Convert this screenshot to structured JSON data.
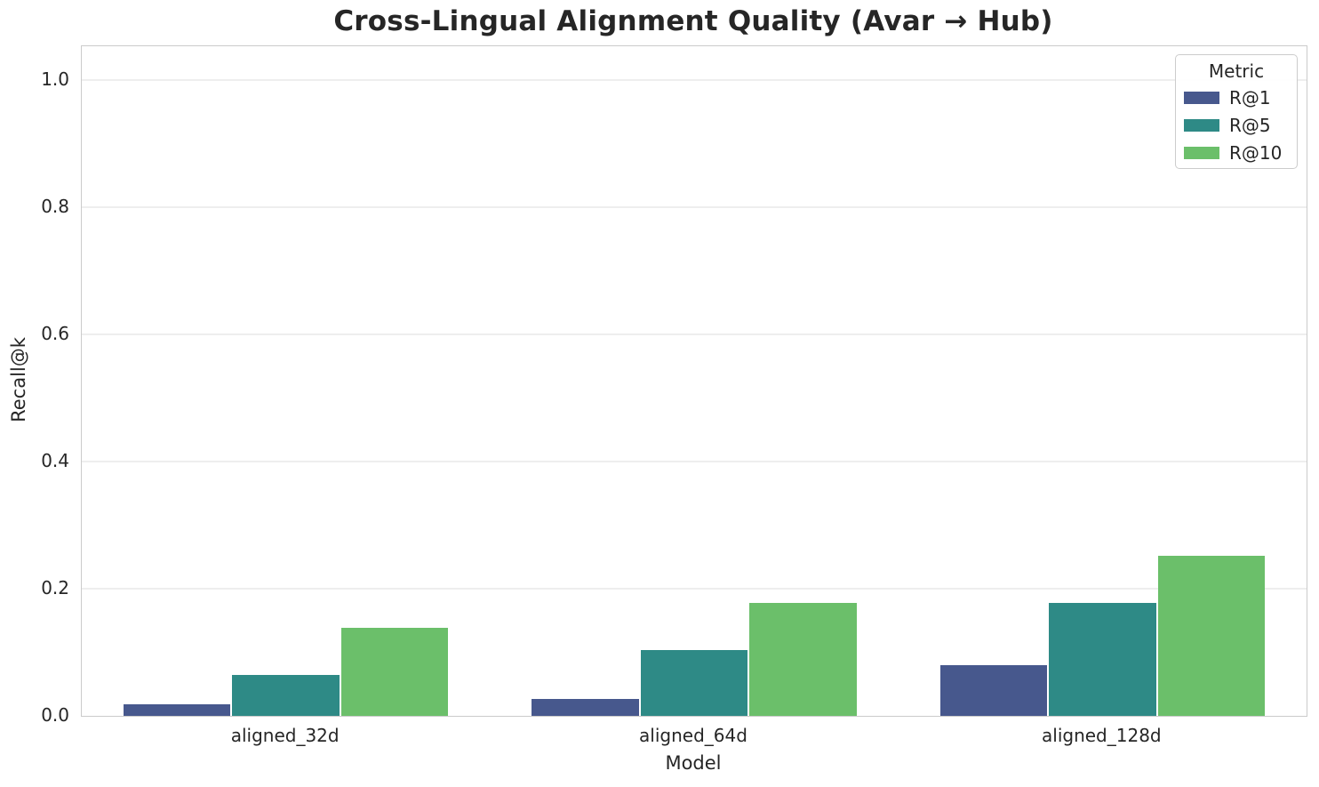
{
  "chart_data": {
    "type": "bar",
    "title": "Cross-Lingual Alignment Quality (Avar → Hub)",
    "xlabel": "Model",
    "ylabel": "Recall@k",
    "categories": [
      "aligned_32d",
      "aligned_64d",
      "aligned_128d"
    ],
    "series": [
      {
        "name": "R@1",
        "color": "#47588d",
        "values": [
          0.018,
          0.026,
          0.08
        ]
      },
      {
        "name": "R@5",
        "color": "#2e8a86",
        "values": [
          0.064,
          0.104,
          0.178
        ]
      },
      {
        "name": "R@10",
        "color": "#6bbf6a",
        "values": [
          0.138,
          0.177,
          0.252
        ]
      }
    ],
    "legend": {
      "title": "Metric",
      "position": "upper right"
    },
    "y_ticks": [
      "0.0",
      "0.2",
      "0.4",
      "0.6",
      "0.8",
      "1.0"
    ],
    "ylim": [
      0,
      1.053
    ],
    "grid": true,
    "bar_group_width_fraction": 0.8
  }
}
